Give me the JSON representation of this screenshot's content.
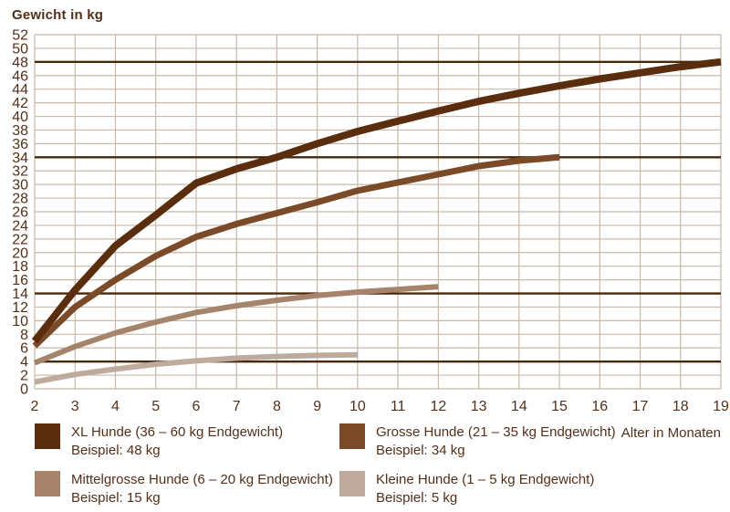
{
  "chart_data": {
    "type": "line",
    "y_axis_title": "Gewicht in kg",
    "xlabel": "Alter in Monaten",
    "xlim": [
      2,
      19
    ],
    "ylim": [
      0,
      52
    ],
    "x_ticks": [
      2,
      3,
      4,
      5,
      6,
      7,
      8,
      9,
      10,
      11,
      12,
      13,
      14,
      15,
      16,
      17,
      18,
      19
    ],
    "y_ticks": [
      0,
      2,
      4,
      6,
      8,
      10,
      12,
      14,
      16,
      18,
      20,
      22,
      24,
      26,
      28,
      30,
      32,
      34,
      36,
      38,
      40,
      42,
      44,
      46,
      48,
      50,
      52
    ],
    "grid": true,
    "legend_position": "bottom",
    "reference_lines": [
      48,
      34,
      14,
      4
    ],
    "series": [
      {
        "name": "XL Hunde",
        "label": "XL Hunde (36 – 60 kg Endgewicht)",
        "example": "Beispiel: 48 kg",
        "color": "#5a2d0e",
        "x": [
          2,
          3,
          4,
          5,
          6,
          7,
          8,
          9,
          10,
          11,
          12,
          13,
          14,
          15,
          16,
          17,
          18,
          19
        ],
        "values": [
          7,
          14.5,
          21,
          25.5,
          30.2,
          32.3,
          34,
          36,
          37.8,
          39.3,
          40.8,
          42.2,
          43.4,
          44.5,
          45.5,
          46.4,
          47.3,
          48
        ]
      },
      {
        "name": "Grosse Hunde",
        "label": "Grosse Hunde (21 – 35 kg Endgewicht)",
        "example": "Beispiel: 34 kg",
        "color": "#7b4a28",
        "x": [
          2,
          3,
          4,
          5,
          6,
          7,
          8,
          9,
          10,
          11,
          12,
          13,
          14,
          15
        ],
        "values": [
          6.3,
          12,
          16,
          19.5,
          22.3,
          24.2,
          25.8,
          27.4,
          29.1,
          30.3,
          31.5,
          32.7,
          33.5,
          34
        ]
      },
      {
        "name": "Mittelgrosse Hunde",
        "label": "Mittelgrosse Hunde (6 – 20 kg Endgewicht)",
        "example": "Beispiel: 15 kg",
        "color": "#a5846b",
        "x": [
          2,
          3,
          4,
          5,
          6,
          7,
          8,
          9,
          10,
          11,
          12
        ],
        "values": [
          3.8,
          6.2,
          8.2,
          9.8,
          11.2,
          12.2,
          13,
          13.7,
          14.2,
          14.6,
          15
        ]
      },
      {
        "name": "Kleine Hunde",
        "label": "Kleine Hunde (1 – 5 kg Endgewicht)",
        "example": "Beispiel: 5 kg",
        "color": "#bfab9e",
        "x": [
          2,
          3,
          4,
          5,
          6,
          7,
          8,
          9,
          10
        ],
        "values": [
          1,
          2.1,
          2.9,
          3.6,
          4.1,
          4.5,
          4.75,
          4.9,
          5
        ]
      }
    ],
    "colors": {
      "grid": "#c8b9a8",
      "reference_line": "#4a2709",
      "text": "#52301a",
      "background": "#ffffff"
    }
  }
}
